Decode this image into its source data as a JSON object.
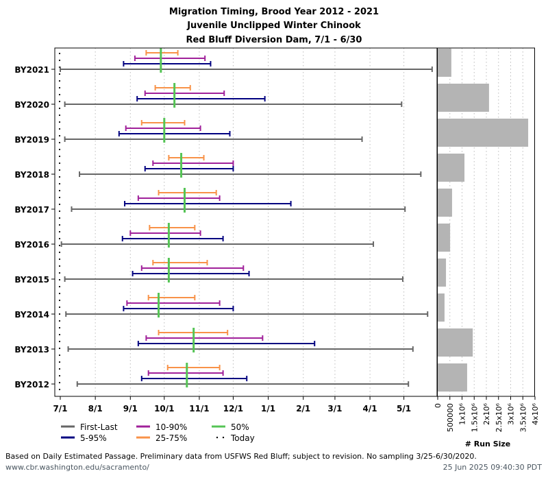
{
  "chart_data": {
    "type": "range-timeline",
    "title": [
      "Migration Timing, Brood Year 2012 - 2021",
      "Juvenile Unclipped Winter Chinook",
      "Red Bluff Diversion Dam, 7/1 - 6/30"
    ],
    "x_ticks": [
      "7/1",
      "8/1",
      "9/1",
      "10/1",
      "11/1",
      "12/1",
      "1/1",
      "2/1",
      "3/1",
      "4/1",
      "5/1"
    ],
    "x_range": [
      "7/1",
      "6/30"
    ],
    "grid": "vertical dotted",
    "colors": {
      "first_last": "#666666",
      "p5_95": "#000080",
      "p10_90": "#a0209a",
      "p25_75": "#f89248",
      "p50": "#55c455",
      "today": "#000000",
      "bar": "#b4b4b4"
    },
    "legend": [
      {
        "key": "first_last",
        "label": "First-Last"
      },
      {
        "key": "p10_90",
        "label": "10-90%"
      },
      {
        "key": "p50",
        "label": "50%"
      },
      {
        "key": "p5_95",
        "label": "5-95%"
      },
      {
        "key": "p25_75",
        "label": "25-75%"
      },
      {
        "key": "today",
        "label": "Today"
      }
    ],
    "legend_position": "bottom-left",
    "today": "7/1",
    "series": [
      {
        "name": "BY2021",
        "first_last": [
          "7/1",
          "5/26"
        ],
        "p5_95": [
          "8/26",
          "11/11"
        ],
        "p10_90": [
          "9/5",
          "11/6"
        ],
        "p25_75": [
          "9/15",
          "10/13"
        ],
        "p50": "9/28",
        "run_size": 560000
      },
      {
        "name": "BY2020",
        "first_last": [
          "7/5",
          "4/29"
        ],
        "p5_95": [
          "9/7",
          "12/29"
        ],
        "p10_90": [
          "9/14",
          "11/23"
        ],
        "p25_75": [
          "9/23",
          "10/24"
        ],
        "p50": "10/10",
        "run_size": 2110000
      },
      {
        "name": "BY2019",
        "first_last": [
          "7/5",
          "3/25"
        ],
        "p5_95": [
          "8/22",
          "11/28"
        ],
        "p10_90": [
          "8/28",
          "11/2"
        ],
        "p25_75": [
          "9/11",
          "10/19"
        ],
        "p50": "10/1",
        "run_size": 3720000
      },
      {
        "name": "BY2018",
        "first_last": [
          "7/18",
          "5/16"
        ],
        "p5_95": [
          "9/14",
          "12/1"
        ],
        "p10_90": [
          "9/21",
          "12/1"
        ],
        "p25_75": [
          "10/5",
          "11/5"
        ],
        "p50": "10/16",
        "run_size": 1100000
      },
      {
        "name": "BY2017",
        "first_last": [
          "7/11",
          "5/2"
        ],
        "p5_95": [
          "8/27",
          "1/21"
        ],
        "p10_90": [
          "9/8",
          "11/19"
        ],
        "p25_75": [
          "9/26",
          "11/16"
        ],
        "p50": "10/19",
        "run_size": 590000
      },
      {
        "name": "BY2016",
        "first_last": [
          "7/2",
          "4/4"
        ],
        "p5_95": [
          "8/25",
          "11/22"
        ],
        "p10_90": [
          "9/1",
          "11/2"
        ],
        "p25_75": [
          "9/18",
          "10/28"
        ],
        "p50": "10/5",
        "run_size": 510000
      },
      {
        "name": "BY2015",
        "first_last": [
          "7/5",
          "4/30"
        ],
        "p5_95": [
          "9/3",
          "12/15"
        ],
        "p10_90": [
          "9/11",
          "12/10"
        ],
        "p25_75": [
          "9/21",
          "11/8"
        ],
        "p50": "10/5",
        "run_size": 340000
      },
      {
        "name": "BY2014",
        "first_last": [
          "7/6",
          "5/22"
        ],
        "p5_95": [
          "8/26",
          "12/1"
        ],
        "p10_90": [
          "8/29",
          "11/19"
        ],
        "p25_75": [
          "9/17",
          "10/28"
        ],
        "p50": "9/26",
        "run_size": 280000
      },
      {
        "name": "BY2013",
        "first_last": [
          "7/8",
          "5/9"
        ],
        "p5_95": [
          "9/8",
          "2/11"
        ],
        "p10_90": [
          "9/15",
          "12/27"
        ],
        "p25_75": [
          "9/26",
          "11/26"
        ],
        "p50": "10/27",
        "run_size": 1440000
      },
      {
        "name": "BY2012",
        "first_last": [
          "7/16",
          "5/5"
        ],
        "p5_95": [
          "9/11",
          "12/13"
        ],
        "p10_90": [
          "9/17",
          "11/22"
        ],
        "p25_75": [
          "10/4",
          "11/19"
        ],
        "p50": "10/21",
        "run_size": 1210000
      }
    ],
    "bar_panel": {
      "xlabel": "# Run Size",
      "x_range": [
        0,
        4000000
      ],
      "x_ticks": [
        0,
        500000,
        1000000,
        1500000,
        2000000,
        2500000,
        3000000,
        3500000,
        4000000
      ],
      "x_tick_labels": [
        "0",
        "500000",
        "1x10⁶",
        "1.5x10⁶",
        "2x10⁶",
        "2.5x10⁶",
        "3x10⁶",
        "3.5x10⁶",
        "4x10⁶"
      ]
    }
  },
  "footer": {
    "note": "Based on Daily Estimated Passage. Preliminary data from USFWS Red Bluff; subject to revision. No sampling 3/25-6/30/2020.",
    "url": "www.cbr.washington.edu/sacramento/",
    "timestamp": "25 Jun 2025 09:40:30 PDT"
  }
}
